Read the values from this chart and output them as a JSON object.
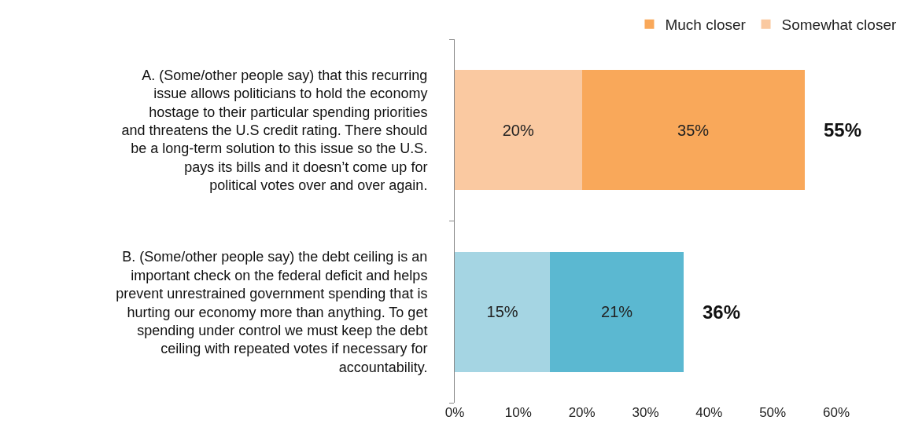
{
  "chart_data": {
    "type": "bar",
    "orientation": "horizontal",
    "stacked": true,
    "categories": [
      "A. (Some/other people say) that this recurring issue allows politicians to hold the economy hostage to their particular spending priorities and threatens the U.S credit rating. There should be a long-term solution to this issue so the U.S. pays its bills and it doesn’t come up for political votes over and over again.",
      "B. (Some/other people say) the debt ceiling is an important check on the federal deficit and helps prevent unrestrained government spending that is hurting our economy more than anything. To get spending under control we must keep the debt ceiling with repeated votes if necessary for accountability."
    ],
    "series": [
      {
        "name": "Somewhat closer",
        "colors": [
          "#fac9a1",
          "#a5d5e3"
        ],
        "values": [
          20,
          15
        ],
        "value_labels": [
          "20%",
          "15%"
        ]
      },
      {
        "name": "Much closer",
        "colors": [
          "#f9a85a",
          "#5bb8d1"
        ],
        "values": [
          35,
          21
        ],
        "value_labels": [
          "35%",
          "21%"
        ]
      }
    ],
    "totals": [
      "55%",
      "36%"
    ],
    "xlim": [
      0,
      60
    ],
    "xticks": [
      {
        "value": 0,
        "label": "0%"
      },
      {
        "value": 10,
        "label": "10%"
      },
      {
        "value": 20,
        "label": "20%"
      },
      {
        "value": 30,
        "label": "30%"
      },
      {
        "value": 40,
        "label": "40%"
      },
      {
        "value": 50,
        "label": "50%"
      },
      {
        "value": 60,
        "label": "60%"
      }
    ],
    "legend": "top"
  }
}
